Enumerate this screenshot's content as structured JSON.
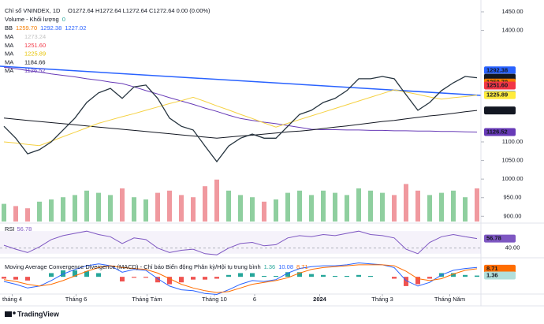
{
  "header": {
    "title": "Chỉ số VNINDEX, 1D",
    "ohlc": "O1272.64 H1272.64 L1272.64 C1272.64 0.00 (0.00%)",
    "volume": "Volume - Khối lượng",
    "volume_value": "0",
    "bb": {
      "label": "BB",
      "values": [
        {
          "text": "1259.70",
          "color": "#f57c00"
        },
        {
          "text": "1292.38",
          "color": "#2962ff"
        },
        {
          "text": "1227.02",
          "color": "#2962ff"
        }
      ]
    },
    "ma": [
      {
        "label": "MA",
        "text": "1273.24",
        "color": "#c4c4c4"
      },
      {
        "label": "MA",
        "text": "1251.60",
        "color": "#f23645"
      },
      {
        "label": "MA",
        "text": "1225.89",
        "color": "#e6c200"
      },
      {
        "label": "MA",
        "text": "1184.66",
        "color": "#131722"
      },
      {
        "label": "MA",
        "text": "1126.52",
        "color": "#673ab7"
      }
    ]
  },
  "chart_data": {
    "type": "line",
    "ylim": [
      900,
      1450
    ],
    "yticks": [
      {
        "value": 1450,
        "label": "1450.00"
      },
      {
        "value": 1400,
        "label": "1400.00"
      },
      {
        "value": 1100,
        "label": "1100.00"
      },
      {
        "value": 1050,
        "label": "1050.00"
      },
      {
        "value": 1000,
        "label": "1000.00"
      },
      {
        "value": 950,
        "label": "950.00"
      },
      {
        "value": 900,
        "label": "900.00"
      }
    ],
    "xlim": [
      0,
      40
    ],
    "xticks": [
      {
        "value": 0.7,
        "label": "tháng 4"
      },
      {
        "value": 6.1,
        "label": "Tháng 6"
      },
      {
        "value": 12.1,
        "label": "Tháng Tám"
      },
      {
        "value": 17.8,
        "label": "Tháng 10"
      },
      {
        "value": 21.2,
        "label": "6"
      },
      {
        "value": 26.7,
        "label": "2024"
      },
      {
        "value": 32,
        "label": "Tháng 3"
      },
      {
        "value": 37.7,
        "label": "Tháng Năm"
      }
    ],
    "series": [
      {
        "color": "#673ab7",
        "values": [
          1301,
          1297,
          1292,
          1288,
          1283,
          1279,
          1275,
          1270,
          1266,
          1261,
          1257,
          1248,
          1238,
          1229,
          1219,
          1210,
          1201,
          1191,
          1182,
          1172,
          1163,
          1158,
          1153,
          1149,
          1144,
          1139,
          1134,
          1133,
          1133,
          1132,
          1132,
          1131,
          1131,
          1130,
          1130,
          1129,
          1129,
          1128,
          1128,
          1127,
          1126.52
        ]
      },
      {
        "color": "#131722",
        "values": [
          1164,
          1161,
          1158,
          1155,
          1152,
          1149,
          1146,
          1143,
          1140,
          1137,
          1134,
          1131,
          1128,
          1125,
          1122,
          1119,
          1116,
          1113,
          1110,
          1113,
          1116,
          1118,
          1121,
          1124,
          1127,
          1129,
          1132,
          1136,
          1140,
          1143,
          1147,
          1151,
          1155,
          1158,
          1162,
          1166,
          1170,
          1173,
          1177,
          1181,
          1184.66
        ]
      },
      {
        "color": "#f5d142",
        "values": [
          1100,
          1097,
          1093,
          1090,
          1102,
          1114,
          1126,
          1138,
          1150,
          1159,
          1168,
          1176,
          1185,
          1194,
          1203,
          1211,
          1220,
          1209,
          1197,
          1186,
          1174,
          1163,
          1151,
          1140,
          1150,
          1160,
          1170,
          1180,
          1190,
          1200,
          1210,
          1220,
          1230,
          1240,
          1234,
          1228,
          1221,
          1215,
          1219,
          1222,
          1225.89
        ]
      },
      {
        "color": "#26343f",
        "values": [
          1142,
          1110,
          1068,
          1079,
          1100,
          1132,
          1164,
          1206,
          1232,
          1244,
          1217,
          1248,
          1253,
          1217,
          1164,
          1142,
          1132,
          1089,
          1047,
          1089,
          1110,
          1121,
          1110,
          1110,
          1142,
          1174,
          1185,
          1206,
          1217,
          1238,
          1270,
          1270,
          1276,
          1270,
          1227,
          1185,
          1206,
          1238,
          1259,
          1276,
          1272.64
        ]
      }
    ],
    "price_tags": [
      {
        "value": 1292.38,
        "label": "1292.38",
        "bg": "#2962ff",
        "fg": "#ffffff"
      },
      {
        "value": 1273.24,
        "label": "1273.24",
        "bg": "#e0e0e0",
        "fg": "#131722"
      },
      {
        "value": 1272.64,
        "label": "1272.64",
        "bg": "#131722",
        "fg": "#ffffff"
      },
      {
        "value": 1259.7,
        "label": "1259.70",
        "bg": "#f57c00",
        "fg": "#ffffff"
      },
      {
        "value": 1251.6,
        "label": "1251.60",
        "bg": "#f23645",
        "fg": "#ffffff"
      },
      {
        "value": 1227.02,
        "label": "1227.02",
        "bg": "#2962ff",
        "fg": "#ffffff"
      },
      {
        "value": 1225.89,
        "label": "1225.89",
        "bg": "#ffeb3b",
        "fg": "#131722"
      },
      {
        "value": 1184.66,
        "label": "1184.66",
        "bg": "#131722",
        "fg": "#ffffff"
      },
      {
        "value": 1126.52,
        "label": "1126.52",
        "bg": "#673ab7",
        "fg": "#ffffff"
      }
    ],
    "volume": {
      "ylim": [
        0,
        100
      ],
      "up_color": "#8fcf9f",
      "down_color": "#f0999f",
      "values": [
        40,
        35,
        30,
        45,
        50,
        55,
        60,
        70,
        65,
        60,
        75,
        55,
        50,
        65,
        70,
        60,
        55,
        80,
        95,
        70,
        60,
        55,
        45,
        50,
        65,
        70,
        60,
        70,
        65,
        60,
        75,
        70,
        65,
        60,
        85,
        70,
        60,
        65,
        70,
        55,
        75
      ]
    },
    "rsi": {
      "title": "RSI",
      "value_label": "56.78",
      "color": "#7e57c2",
      "ylim": [
        20,
        80
      ],
      "yticks": [
        {
          "value": 40,
          "label": "40.00"
        }
      ],
      "tag": {
        "value": 56.78,
        "label": "56.78"
      },
      "values": [
        45,
        38,
        32,
        42,
        55,
        62,
        66,
        70,
        64,
        60,
        48,
        58,
        55,
        40,
        32,
        36,
        38,
        30,
        28,
        40,
        48,
        50,
        44,
        46,
        58,
        62,
        60,
        64,
        62,
        66,
        70,
        64,
        62,
        58,
        38,
        30,
        50,
        60,
        64,
        60,
        56.78
      ]
    },
    "macd": {
      "title": "Moving Average Convergence Divergence (MACD) - Chỉ báo Biến động Phân kỳ/Hội tụ trung bình",
      "ylim": [
        -22,
        18
      ],
      "labels": [
        {
          "text": "1.36",
          "color": "#26a69a"
        },
        {
          "text": "10.08",
          "color": "#2962ff"
        },
        {
          "text": "8.71",
          "color": "#ff6d00"
        }
      ],
      "tags": [
        {
          "value": 8.71,
          "label": "8.71",
          "bg": "#ff6d00"
        },
        {
          "value": 1.36,
          "label": "1.36",
          "bg": "#b2dfdb"
        }
      ],
      "macd_color": "#2962ff",
      "signal_color": "#ff6d00",
      "hist_up": "#26a69a",
      "hist_down": "#ef5350",
      "macd": [
        -5,
        -8,
        -12,
        -10,
        -4,
        3,
        8,
        12,
        14,
        12,
        5,
        8,
        7,
        -2,
        -10,
        -14,
        -15,
        -18,
        -19,
        -14,
        -8,
        -4,
        -5,
        -3,
        4,
        9,
        11,
        12,
        12,
        13,
        15,
        14,
        13,
        10,
        -4,
        -10,
        -6,
        2,
        7,
        9,
        10.08
      ],
      "signal": [
        -3,
        -5,
        -8,
        -10,
        -8,
        -4,
        1,
        6,
        10,
        12,
        10,
        9,
        8,
        4,
        -2,
        -8,
        -12,
        -15,
        -17,
        -16,
        -12,
        -8,
        -6,
        -4,
        -1,
        4,
        8,
        10,
        11,
        12,
        13,
        13,
        13,
        12,
        6,
        -2,
        -4,
        -2,
        3,
        7,
        8.71
      ],
      "hist": [
        -2,
        -3,
        -4,
        0,
        4,
        7,
        7,
        6,
        4,
        0,
        -5,
        -1,
        -1,
        -6,
        -8,
        -6,
        -3,
        -3,
        -2,
        2,
        4,
        4,
        1,
        1,
        5,
        5,
        3,
        2,
        1,
        1,
        2,
        1,
        0,
        -2,
        -10,
        -8,
        -2,
        4,
        4,
        2,
        1.36
      ]
    }
  },
  "footer": {
    "brand": "TradingView"
  }
}
